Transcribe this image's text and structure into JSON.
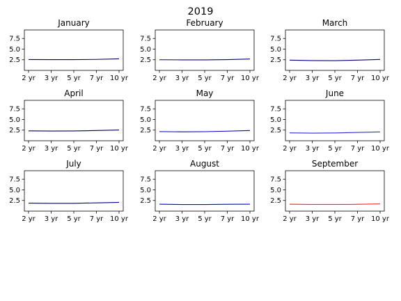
{
  "suptitle": "2019",
  "chart_data": {
    "type": "line",
    "title": "2019",
    "x": [
      "2 yr",
      "3 yr",
      "5 yr",
      "7 yr",
      "10 yr"
    ],
    "ylim": [
      0.0,
      9.5
    ],
    "yticks": [
      "2.5",
      "5.0",
      "7.5"
    ],
    "ytick_values": [
      2.5,
      5.0,
      7.5
    ],
    "grid": false,
    "panels": [
      {
        "title": "January",
        "color": "#00004a",
        "values": [
          2.55,
          2.53,
          2.52,
          2.58,
          2.72
        ]
      },
      {
        "title": "February",
        "color": "#00007a",
        "values": [
          2.5,
          2.47,
          2.46,
          2.53,
          2.68
        ]
      },
      {
        "title": "March",
        "color": "#00007a",
        "values": [
          2.4,
          2.3,
          2.29,
          2.4,
          2.57
        ]
      },
      {
        "title": "April",
        "color": "#00005c",
        "values": [
          2.32,
          2.29,
          2.31,
          2.4,
          2.53
        ]
      },
      {
        "title": "May",
        "color": "#0000c0",
        "values": [
          2.15,
          2.1,
          2.13,
          2.25,
          2.4
        ]
      },
      {
        "title": "June",
        "color": "#2f2fd8",
        "values": [
          1.85,
          1.79,
          1.84,
          1.95,
          2.07
        ]
      },
      {
        "title": "July",
        "color": "#00009c",
        "values": [
          1.88,
          1.84,
          1.84,
          1.94,
          2.06
        ]
      },
      {
        "title": "August",
        "color": "#0000ff",
        "values": [
          1.63,
          1.55,
          1.55,
          1.6,
          1.63
        ]
      },
      {
        "title": "September",
        "color": "#ff2020",
        "values": [
          1.63,
          1.57,
          1.56,
          1.6,
          1.7
        ]
      }
    ]
  }
}
